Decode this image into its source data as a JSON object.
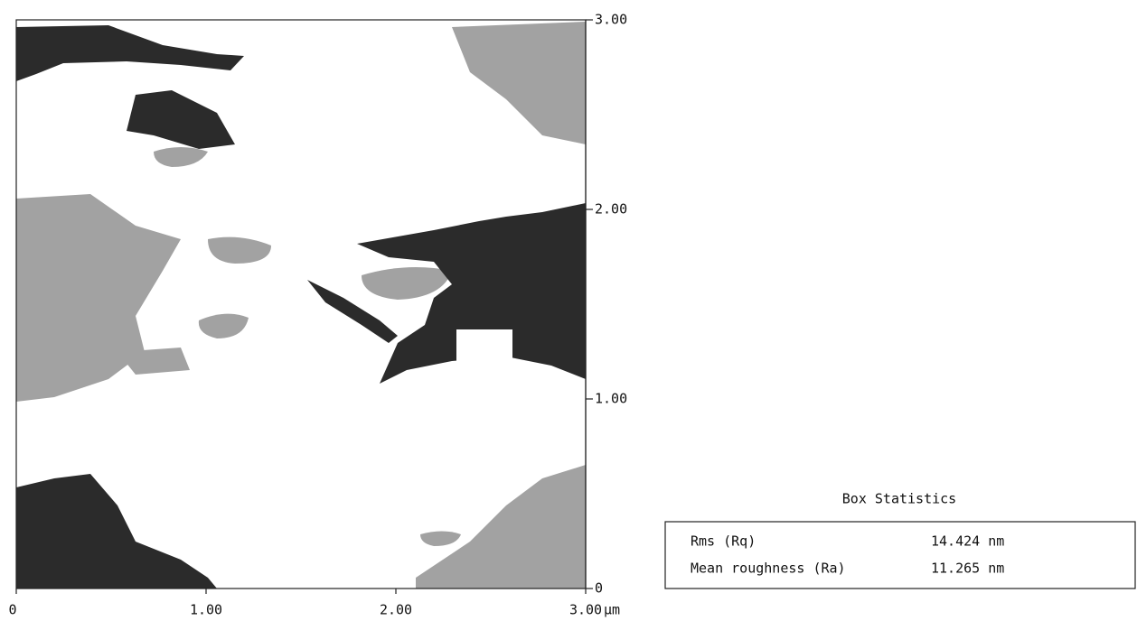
{
  "image": {
    "x_axis": {
      "ticks": [
        "0",
        "1.00",
        "2.00",
        "3.00"
      ],
      "unit": "µm"
    },
    "y_axis": {
      "ticks": [
        "3.00",
        "2.00",
        "1.00",
        "0"
      ]
    }
  },
  "box_statistics": {
    "title": "Box Statistics",
    "rows": [
      [
        "Rms (Rq)",
        "14.424 nm"
      ],
      [
        "Mean roughness (Ra)",
        "11.265 nm"
      ]
    ]
  }
}
